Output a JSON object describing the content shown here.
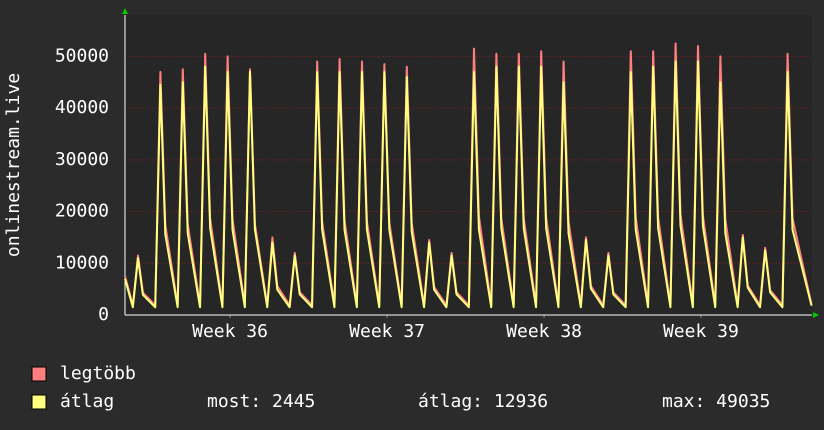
{
  "chart_data": {
    "type": "line",
    "y_label": "onlinestream.live",
    "x": [
      0,
      0.35,
      0.58,
      0.8,
      1.35,
      1.58,
      1.8,
      2.35,
      2.58,
      2.8,
      3.35,
      3.58,
      3.8,
      4.35,
      4.58,
      4.8,
      5.35,
      5.58,
      5.8,
      6.35,
      6.58,
      6.8,
      7.35,
      7.58,
      7.8,
      8.35,
      8.58,
      8.8,
      9.35,
      9.58,
      9.8,
      10.35,
      10.58,
      10.8,
      11.35,
      11.58,
      11.8,
      12.35,
      12.58,
      12.8,
      13.35,
      13.58,
      13.8,
      14.35,
      14.58,
      14.8,
      15.35,
      15.58,
      15.8,
      16.35,
      16.58,
      16.8,
      17.35,
      17.58,
      17.8,
      18.35,
      18.58,
      18.8,
      19.35,
      19.58,
      19.8,
      20.35,
      20.58,
      20.8,
      21.35,
      21.58,
      21.8,
      22.35,
      22.58,
      22.8,
      23.35,
      23.58,
      23.8,
      24.35,
      24.58,
      24.8,
      25.35,
      25.58,
      25.8,
      26.35,
      26.58,
      26.8,
      27.35,
      27.58,
      27.8,
      28.35,
      28.58,
      28.8,
      29.35,
      29.58,
      29.8,
      30.65
    ],
    "series": [
      {
        "name": "legtöbb",
        "color": "#ff7f7f",
        "values": [
          7500,
          1900,
          11500,
          4300,
          1900,
          47000,
          17400,
          1900,
          47500,
          17600,
          1900,
          50500,
          18700,
          1900,
          50000,
          18500,
          1900,
          47500,
          17600,
          1900,
          15000,
          5600,
          1900,
          12000,
          4400,
          1900,
          49000,
          18100,
          1900,
          49500,
          18300,
          1900,
          49000,
          18100,
          1900,
          48500,
          17900,
          1900,
          48000,
          17800,
          1900,
          14500,
          5400,
          1900,
          12000,
          4400,
          1900,
          51500,
          19100,
          1900,
          50500,
          18700,
          1900,
          50500,
          18700,
          1900,
          51000,
          18900,
          1900,
          49000,
          18100,
          1900,
          15000,
          5600,
          1900,
          12000,
          4400,
          1900,
          51000,
          18900,
          1900,
          51000,
          18900,
          1900,
          52500,
          19400,
          1900,
          52000,
          19200,
          1900,
          50000,
          18500,
          1900,
          15500,
          5700,
          1900,
          13000,
          4800,
          1900,
          50500,
          18700,
          2000
        ]
      },
      {
        "name": "átlag",
        "color": "#ffff7f",
        "values": [
          7000,
          1500,
          11000,
          3900,
          1500,
          44500,
          15600,
          1500,
          45000,
          15800,
          1500,
          48000,
          16800,
          1500,
          47000,
          16500,
          1500,
          47000,
          16500,
          1500,
          14000,
          4900,
          1500,
          11500,
          4000,
          1500,
          47000,
          16500,
          1500,
          47000,
          16500,
          1500,
          47000,
          16500,
          1500,
          47000,
          16500,
          1500,
          46000,
          16100,
          1500,
          14000,
          4900,
          1500,
          11500,
          4000,
          1500,
          47000,
          16500,
          1500,
          48000,
          16800,
          1500,
          48000,
          16800,
          1500,
          48000,
          16800,
          1500,
          45000,
          15800,
          1500,
          14500,
          5100,
          1500,
          11500,
          4000,
          1500,
          47000,
          16500,
          1500,
          48000,
          16800,
          1500,
          49000,
          17200,
          1500,
          49000,
          17200,
          1500,
          45000,
          15800,
          1500,
          15000,
          5300,
          1500,
          12500,
          4400,
          1500,
          47000,
          16500,
          1800
        ]
      }
    ],
    "xlim": [
      0,
      30.67
    ],
    "xticks": [
      {
        "value": 4.69,
        "label": "Week 36"
      },
      {
        "value": 11.7,
        "label": "Week 37"
      },
      {
        "value": 18.71,
        "label": "Week 38"
      },
      {
        "value": 25.71,
        "label": "Week 39"
      }
    ],
    "ylim": [
      0,
      58000
    ],
    "yticks": [
      0,
      10000,
      20000,
      30000,
      40000,
      50000
    ],
    "grid": true,
    "stats": [
      "most: 2445",
      "átlag: 12936",
      "max: 49035"
    ]
  }
}
